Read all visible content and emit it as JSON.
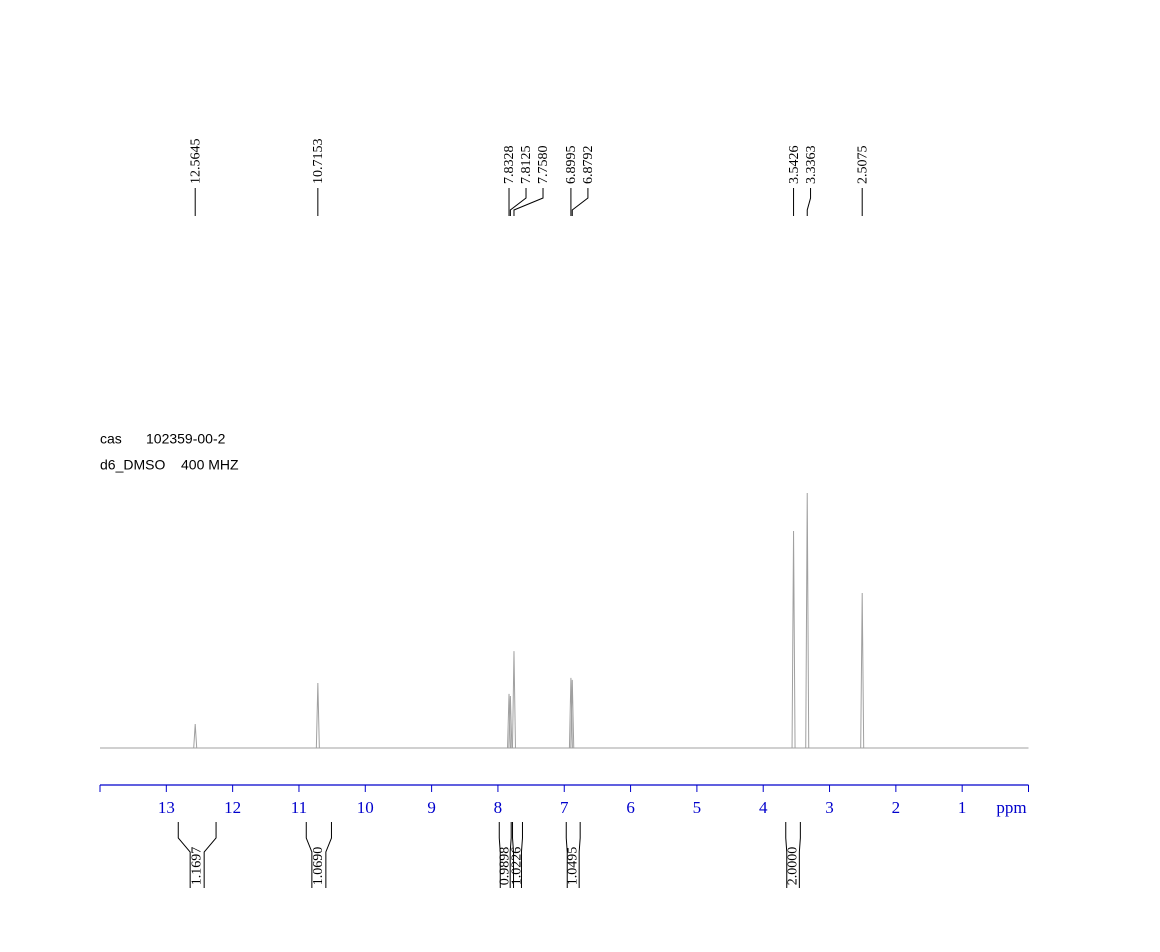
{
  "chart_data": {
    "type": "nmr",
    "sample": {
      "cas_label": "cas",
      "cas": "102359-00-2",
      "solvent": "d6_DMSO",
      "frequency": "400 MHZ"
    },
    "xlim": [
      14,
      0
    ],
    "xticks": [
      13,
      12,
      11,
      10,
      9,
      8,
      7,
      6,
      5,
      4,
      3,
      2,
      1
    ],
    "x_label": "ppm",
    "ylim": [
      0,
      100
    ],
    "axis_color": "#0000cc",
    "line_color": "#a0a0a0",
    "peaks": {
      "x": [
        12.5645,
        10.7153,
        7.8328,
        7.8125,
        7.758,
        6.8995,
        6.8792,
        3.5426,
        3.3363,
        2.5075
      ],
      "labels": [
        "12.5645",
        "10.7153",
        "7.8328",
        "7.8125",
        "7.7580",
        "6.8995",
        "6.8792",
        "3.5426",
        "3.3363",
        "2.5075"
      ],
      "values": [
        9.4,
        25.5,
        21.2,
        20.4,
        38,
        27.5,
        26.7,
        85.1,
        100,
        60.8
      ]
    },
    "integrals": [
      {
        "from": 12.82,
        "to": 12.25,
        "value": 1.1697,
        "label": "1.1697"
      },
      {
        "from": 10.89,
        "to": 10.51,
        "value": 1.069,
        "label": "1.0690"
      },
      {
        "from": 7.98,
        "to": 7.8,
        "value": 0.9898,
        "label": "0.9898"
      },
      {
        "from": 7.78,
        "to": 7.63,
        "value": 1.0226,
        "label": "1.0226"
      },
      {
        "from": 6.97,
        "to": 6.76,
        "value": 1.0495,
        "label": "1.0495"
      },
      {
        "from": 3.66,
        "to": 3.44,
        "value": 2,
        "label": "2.0000"
      }
    ]
  }
}
